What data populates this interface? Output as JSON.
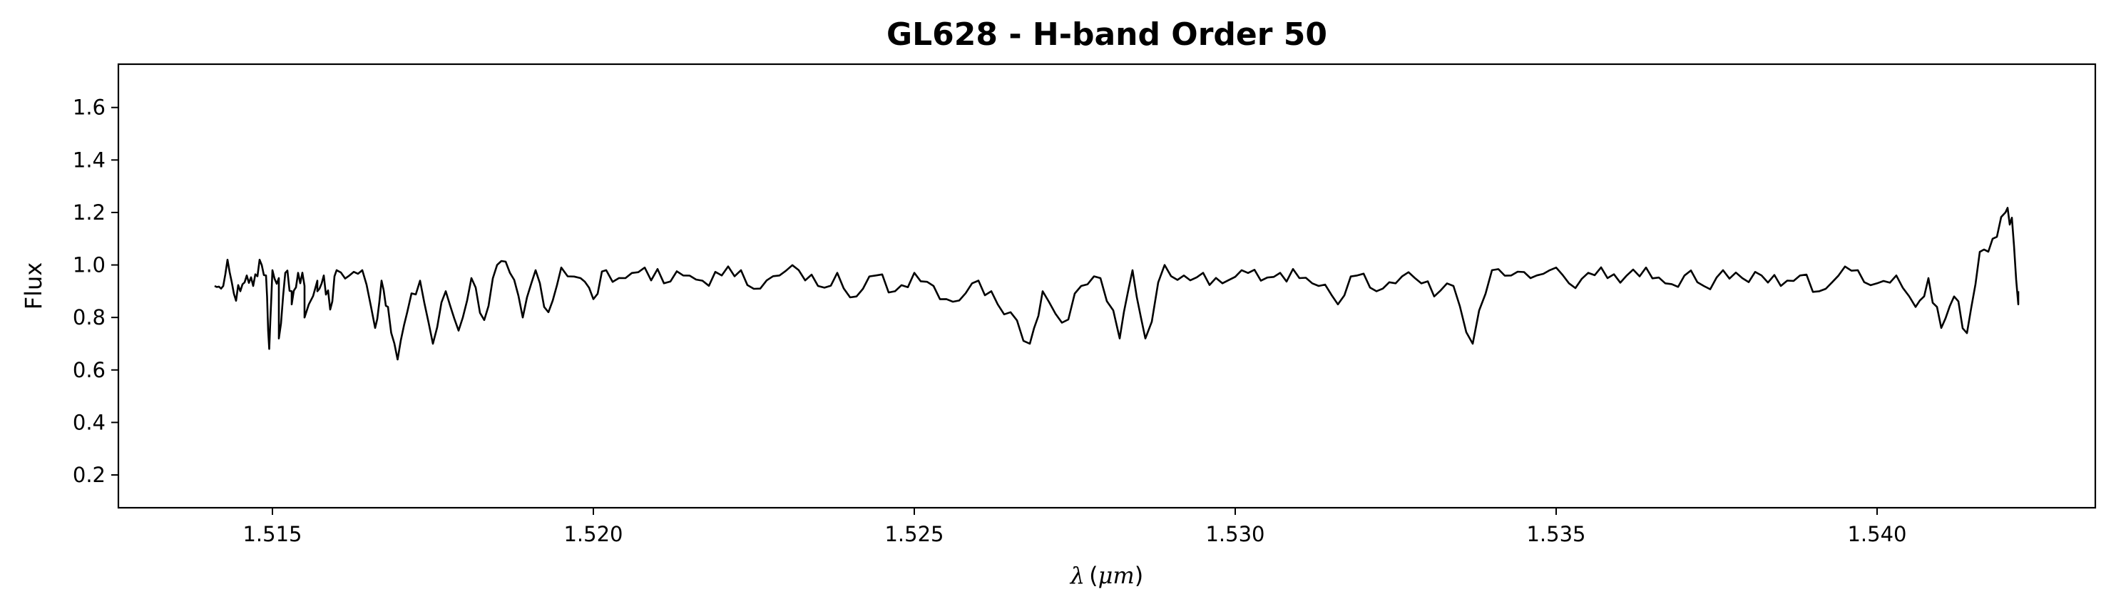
{
  "chart_data": {
    "type": "line",
    "title": "GL628 - H-band Order 50",
    "xlabel": "λ (μm)",
    "xlabel_symbol": "λ",
    "xlabel_unit": "μm",
    "ylabel": "Flux",
    "xlim": [
      1.5126,
      1.5434
    ],
    "ylim": [
      0.075,
      1.765
    ],
    "xticks": [
      1.515,
      1.52,
      1.525,
      1.53,
      1.535,
      1.54
    ],
    "xtick_labels": [
      "1.515",
      "1.520",
      "1.525",
      "1.530",
      "1.535",
      "1.540"
    ],
    "yticks": [
      0.2,
      0.4,
      0.6,
      0.8,
      1.0,
      1.2,
      1.4,
      1.6
    ],
    "ytick_labels": [
      "0.2",
      "0.4",
      "0.6",
      "0.8",
      "1.0",
      "1.2",
      "1.4",
      "1.6"
    ],
    "grid": false,
    "line_color": "#000000",
    "series": [
      {
        "x_start": 1.5141,
        "x_end": 1.5422,
        "anchors": [
          [
            1.5141,
            0.92
          ],
          [
            1.5142,
            0.91
          ],
          [
            1.5143,
            1.02
          ],
          [
            1.5144,
            0.89
          ],
          [
            1.5145,
            0.9
          ],
          [
            1.5146,
            0.96
          ],
          [
            1.5147,
            0.92
          ],
          [
            1.5148,
            1.02
          ],
          [
            1.5149,
            0.96
          ],
          [
            1.515,
            0.98
          ],
          [
            1.5151,
            0.95
          ],
          [
            1.5152,
            0.97
          ],
          [
            1.5153,
            0.9
          ],
          [
            1.5154,
            0.97
          ],
          [
            1.5155,
            0.92
          ],
          [
            1.5157,
            0.94
          ],
          [
            1.5158,
            0.96
          ],
          [
            1.5159,
            0.83
          ],
          [
            1.51495,
            0.68
          ],
          [
            1.5151,
            0.72
          ],
          [
            1.5153,
            0.85
          ],
          [
            1.5155,
            0.8
          ],
          [
            1.5157,
            0.9
          ],
          [
            1.516,
            0.98
          ],
          [
            1.5162,
            0.96
          ],
          [
            1.5164,
            0.98
          ],
          [
            1.5166,
            0.76
          ],
          [
            1.5167,
            0.94
          ],
          [
            1.5168,
            0.84
          ],
          [
            1.51695,
            0.64
          ],
          [
            1.5171,
            0.82
          ],
          [
            1.5173,
            0.94
          ],
          [
            1.5175,
            0.7
          ],
          [
            1.5177,
            0.9
          ],
          [
            1.5179,
            0.75
          ],
          [
            1.5181,
            0.95
          ],
          [
            1.5183,
            0.79
          ],
          [
            1.5185,
            1.0
          ],
          [
            1.5187,
            0.97
          ],
          [
            1.5189,
            0.8
          ],
          [
            1.5191,
            0.98
          ],
          [
            1.5193,
            0.82
          ],
          [
            1.5195,
            0.99
          ],
          [
            1.5198,
            0.95
          ],
          [
            1.52,
            0.87
          ],
          [
            1.5202,
            0.98
          ],
          [
            1.5205,
            0.95
          ],
          [
            1.5208,
            0.99
          ],
          [
            1.5211,
            0.93
          ],
          [
            1.5214,
            0.96
          ],
          [
            1.5217,
            0.94
          ],
          [
            1.522,
            0.96
          ],
          [
            1.5223,
            0.98
          ],
          [
            1.5226,
            0.91
          ],
          [
            1.5229,
            0.96
          ],
          [
            1.5232,
            0.98
          ],
          [
            1.5235,
            0.92
          ],
          [
            1.5238,
            0.97
          ],
          [
            1.5241,
            0.88
          ],
          [
            1.5244,
            0.96
          ],
          [
            1.5247,
            0.9
          ],
          [
            1.525,
            0.97
          ],
          [
            1.5253,
            0.92
          ],
          [
            1.5256,
            0.86
          ],
          [
            1.5259,
            0.93
          ],
          [
            1.5262,
            0.9
          ],
          [
            1.5265,
            0.82
          ],
          [
            1.5268,
            0.7
          ],
          [
            1.527,
            0.9
          ],
          [
            1.5273,
            0.78
          ],
          [
            1.5276,
            0.92
          ],
          [
            1.5279,
            0.95
          ],
          [
            1.5282,
            0.72
          ],
          [
            1.5284,
            0.98
          ],
          [
            1.5286,
            0.72
          ],
          [
            1.5289,
            1.0
          ],
          [
            1.5292,
            0.96
          ],
          [
            1.5295,
            0.97
          ],
          [
            1.5298,
            0.93
          ],
          [
            1.5301,
            0.98
          ],
          [
            1.5304,
            0.94
          ],
          [
            1.5307,
            0.97
          ],
          [
            1.531,
            0.95
          ],
          [
            1.5313,
            0.92
          ],
          [
            1.5316,
            0.85
          ],
          [
            1.5319,
            0.96
          ],
          [
            1.5322,
            0.9
          ],
          [
            1.5325,
            0.93
          ],
          [
            1.5328,
            0.95
          ],
          [
            1.5331,
            0.88
          ],
          [
            1.5334,
            0.92
          ],
          [
            1.5337,
            0.7
          ],
          [
            1.534,
            0.98
          ],
          [
            1.5343,
            0.96
          ],
          [
            1.5346,
            0.95
          ],
          [
            1.5349,
            0.98
          ],
          [
            1.5352,
            0.93
          ],
          [
            1.5355,
            0.97
          ],
          [
            1.5358,
            0.95
          ],
          [
            1.5361,
            0.96
          ],
          [
            1.5364,
            0.99
          ],
          [
            1.5367,
            0.93
          ],
          [
            1.537,
            0.96
          ],
          [
            1.5373,
            0.92
          ],
          [
            1.5376,
            0.98
          ],
          [
            1.5379,
            0.95
          ],
          [
            1.5382,
            0.96
          ],
          [
            1.5385,
            0.92
          ],
          [
            1.5388,
            0.96
          ],
          [
            1.5391,
            0.9
          ],
          [
            1.5394,
            0.96
          ],
          [
            1.5397,
            0.98
          ],
          [
            1.54,
            0.93
          ],
          [
            1.5403,
            0.96
          ],
          [
            1.5406,
            0.84
          ],
          [
            1.5408,
            0.95
          ],
          [
            1.541,
            0.76
          ],
          [
            1.5412,
            0.88
          ],
          [
            1.5414,
            0.74
          ],
          [
            1.5416,
            1.05
          ],
          [
            1.5418,
            1.1
          ],
          [
            1.542,
            1.2
          ],
          [
            1.5421,
            1.18
          ],
          [
            1.5422,
            0.85
          ],
          [
            1.5422,
            0.9
          ]
        ]
      }
    ]
  }
}
